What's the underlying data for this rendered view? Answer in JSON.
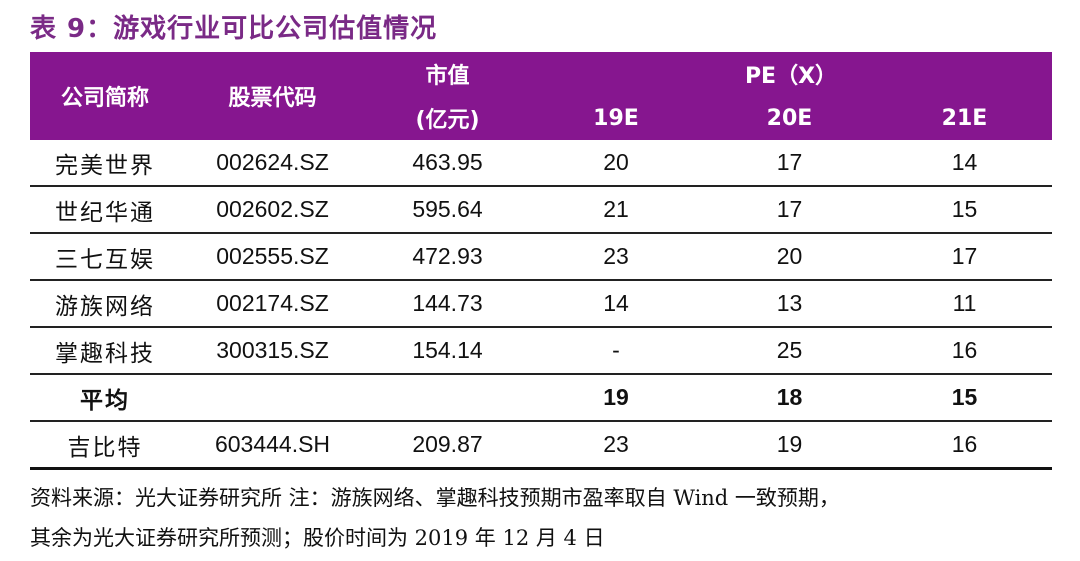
{
  "title": "表 9：游戏行业可比公司估值情况",
  "headers": {
    "company": "公司简称",
    "code": "股票代码",
    "mcap_top": "市值",
    "mcap_bottom": "(亿元)",
    "pe_group": "PE（X）",
    "y19": "19E",
    "y20": "20E",
    "y21": "21E"
  },
  "rows": [
    {
      "name": "完美世界",
      "code": "002624.SZ",
      "mcap": "463.95",
      "pe19": "20",
      "pe20": "17",
      "pe21": "14"
    },
    {
      "name": "世纪华通",
      "code": "002602.SZ",
      "mcap": "595.64",
      "pe19": "21",
      "pe20": "17",
      "pe21": "15"
    },
    {
      "name": "三七互娱",
      "code": "002555.SZ",
      "mcap": "472.93",
      "pe19": "23",
      "pe20": "20",
      "pe21": "17"
    },
    {
      "name": "游族网络",
      "code": "002174.SZ",
      "mcap": "144.73",
      "pe19": "14",
      "pe20": "13",
      "pe21": "11"
    },
    {
      "name": "掌趣科技",
      "code": "300315.SZ",
      "mcap": "154.14",
      "pe19": "-",
      "pe20": "25",
      "pe21": "16"
    },
    {
      "name": "平均",
      "code": "",
      "mcap": "",
      "pe19": "19",
      "pe20": "18",
      "pe21": "15"
    },
    {
      "name": "吉比特",
      "code": "603444.SH",
      "mcap": "209.87",
      "pe19": "23",
      "pe20": "19",
      "pe21": "16"
    }
  ],
  "note": {
    "line1": "资料来源：光大证券研究所 注：游族网络、掌趣科技预期市盈率取自 Wind 一致预期，",
    "line2": "其余为光大证券研究所预测；股价时间为 2019 年 12 月 4 日"
  }
}
